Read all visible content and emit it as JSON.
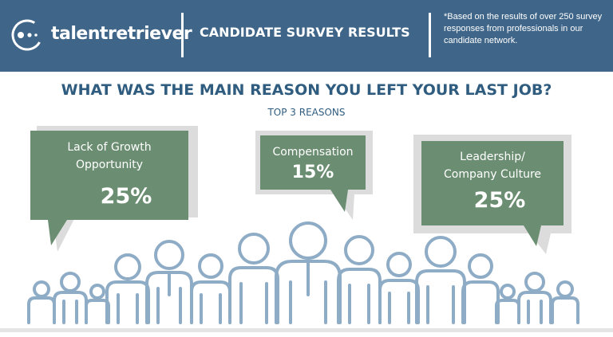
{
  "header": {
    "brand": "talentretriever",
    "title": "CANDIDATE SURVEY RESULTS",
    "note": "*Based on the results of over 250 survey responses from professionals in our candidate network."
  },
  "main": {
    "question": "WHAT WAS THE MAIN REASON YOU LEFT YOUR LAST JOB?",
    "subtitle": "TOP 3 REASONS",
    "reasons": [
      {
        "label_line1": "Lack of Growth",
        "label_line2": "Opportunity",
        "percent": "25%"
      },
      {
        "label_line1": "Compensation",
        "label_line2": "",
        "percent": "15%"
      },
      {
        "label_line1": "Leadership/",
        "label_line2": "Company Culture",
        "percent": "25%"
      }
    ]
  },
  "colors": {
    "header_bg": "#3f6689",
    "question_text": "#2f5c7f",
    "bubble_fill": "#6b8e72",
    "bubble_outline": "#dcdcdc",
    "people_stroke": "#8eacc6"
  },
  "icons": [
    "talent-retriever-logo-icon",
    "people-crowd-icon"
  ]
}
